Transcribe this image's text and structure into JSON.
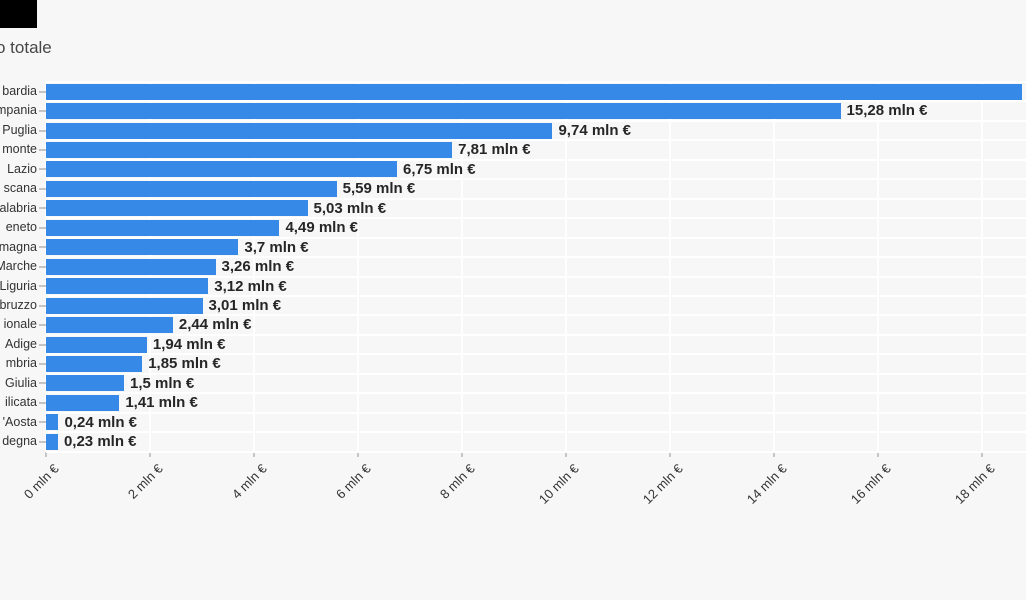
{
  "title_visible": "o totale",
  "colors": {
    "background": "#f7f7f7",
    "bar": "#3789e8",
    "gridline": "#ffffff",
    "value_label_text": "#262626",
    "category_text": "#333333",
    "axis_text": "#333333",
    "title_text": "#474747",
    "tick_mark": "#c4c4c4",
    "corner_box": "#000000"
  },
  "chart_data": {
    "type": "bar",
    "orientation": "horizontal",
    "title": "o totale",
    "unit": "mln €",
    "grid": "vertical and horizontal white gridlines",
    "legend": "none",
    "categories": [
      "bardia",
      "mpania",
      "Puglia",
      "monte",
      "Lazio",
      "scana",
      "alabria",
      "eneto",
      "magna",
      "Marche",
      "Liguria",
      "bruzzo",
      "ionale",
      "Adige",
      "mbria",
      "Giulia",
      "ilicata",
      "'Aosta",
      "degna"
    ],
    "values": [
      18.76,
      15.28,
      9.74,
      7.81,
      6.75,
      5.59,
      5.03,
      4.49,
      3.7,
      3.26,
      3.12,
      3.01,
      2.44,
      1.94,
      1.85,
      1.5,
      1.41,
      0.24,
      0.23
    ],
    "value_labels": [
      "",
      "15,28 mln €",
      "9,74 mln €",
      "7,81 mln €",
      "6,75 mln €",
      "5,59 mln €",
      "5,03 mln €",
      "4,49 mln €",
      "3,7 mln €",
      "3,26 mln €",
      "3,12 mln €",
      "3,01 mln €",
      "2,44 mln €",
      "1,94 mln €",
      "1,85 mln €",
      "1,5 mln €",
      "1,41 mln €",
      "0,24 mln €",
      "0,23 mln €"
    ],
    "x_tick_values": [
      0,
      2,
      4,
      6,
      8,
      10,
      12,
      14,
      16,
      18
    ],
    "x_tick_labels": [
      "0 mln €",
      "2 mln €",
      "4 mln €",
      "6 mln €",
      "8 mln €",
      "10 mln €",
      "12 mln €",
      "14 mln €",
      "16 mln €",
      "18 mln €"
    ],
    "xlim": [
      0,
      18.85
    ]
  }
}
